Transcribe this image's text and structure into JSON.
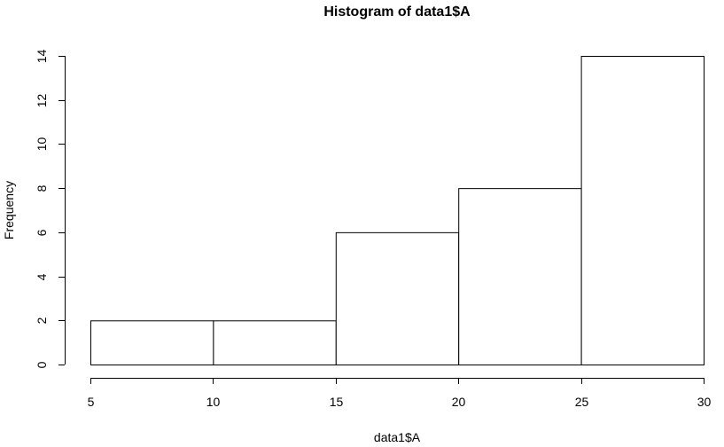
{
  "chart_data": {
    "type": "bar",
    "subtype": "histogram",
    "title": "Histogram of data1$A",
    "xlabel": "data1$A",
    "ylabel": "Frequency",
    "bins": [
      [
        5,
        10
      ],
      [
        10,
        15
      ],
      [
        15,
        20
      ],
      [
        20,
        25
      ],
      [
        25,
        30
      ]
    ],
    "values": [
      2,
      2,
      6,
      8,
      14
    ],
    "xlim": [
      5,
      30
    ],
    "ylim": [
      0,
      14
    ],
    "xticks": [
      5,
      10,
      15,
      20,
      25,
      30
    ],
    "yticks": [
      0,
      2,
      4,
      6,
      8,
      10,
      12,
      14
    ],
    "grid": false,
    "bar_fill": "#ffffff",
    "bar_stroke": "#000000"
  }
}
